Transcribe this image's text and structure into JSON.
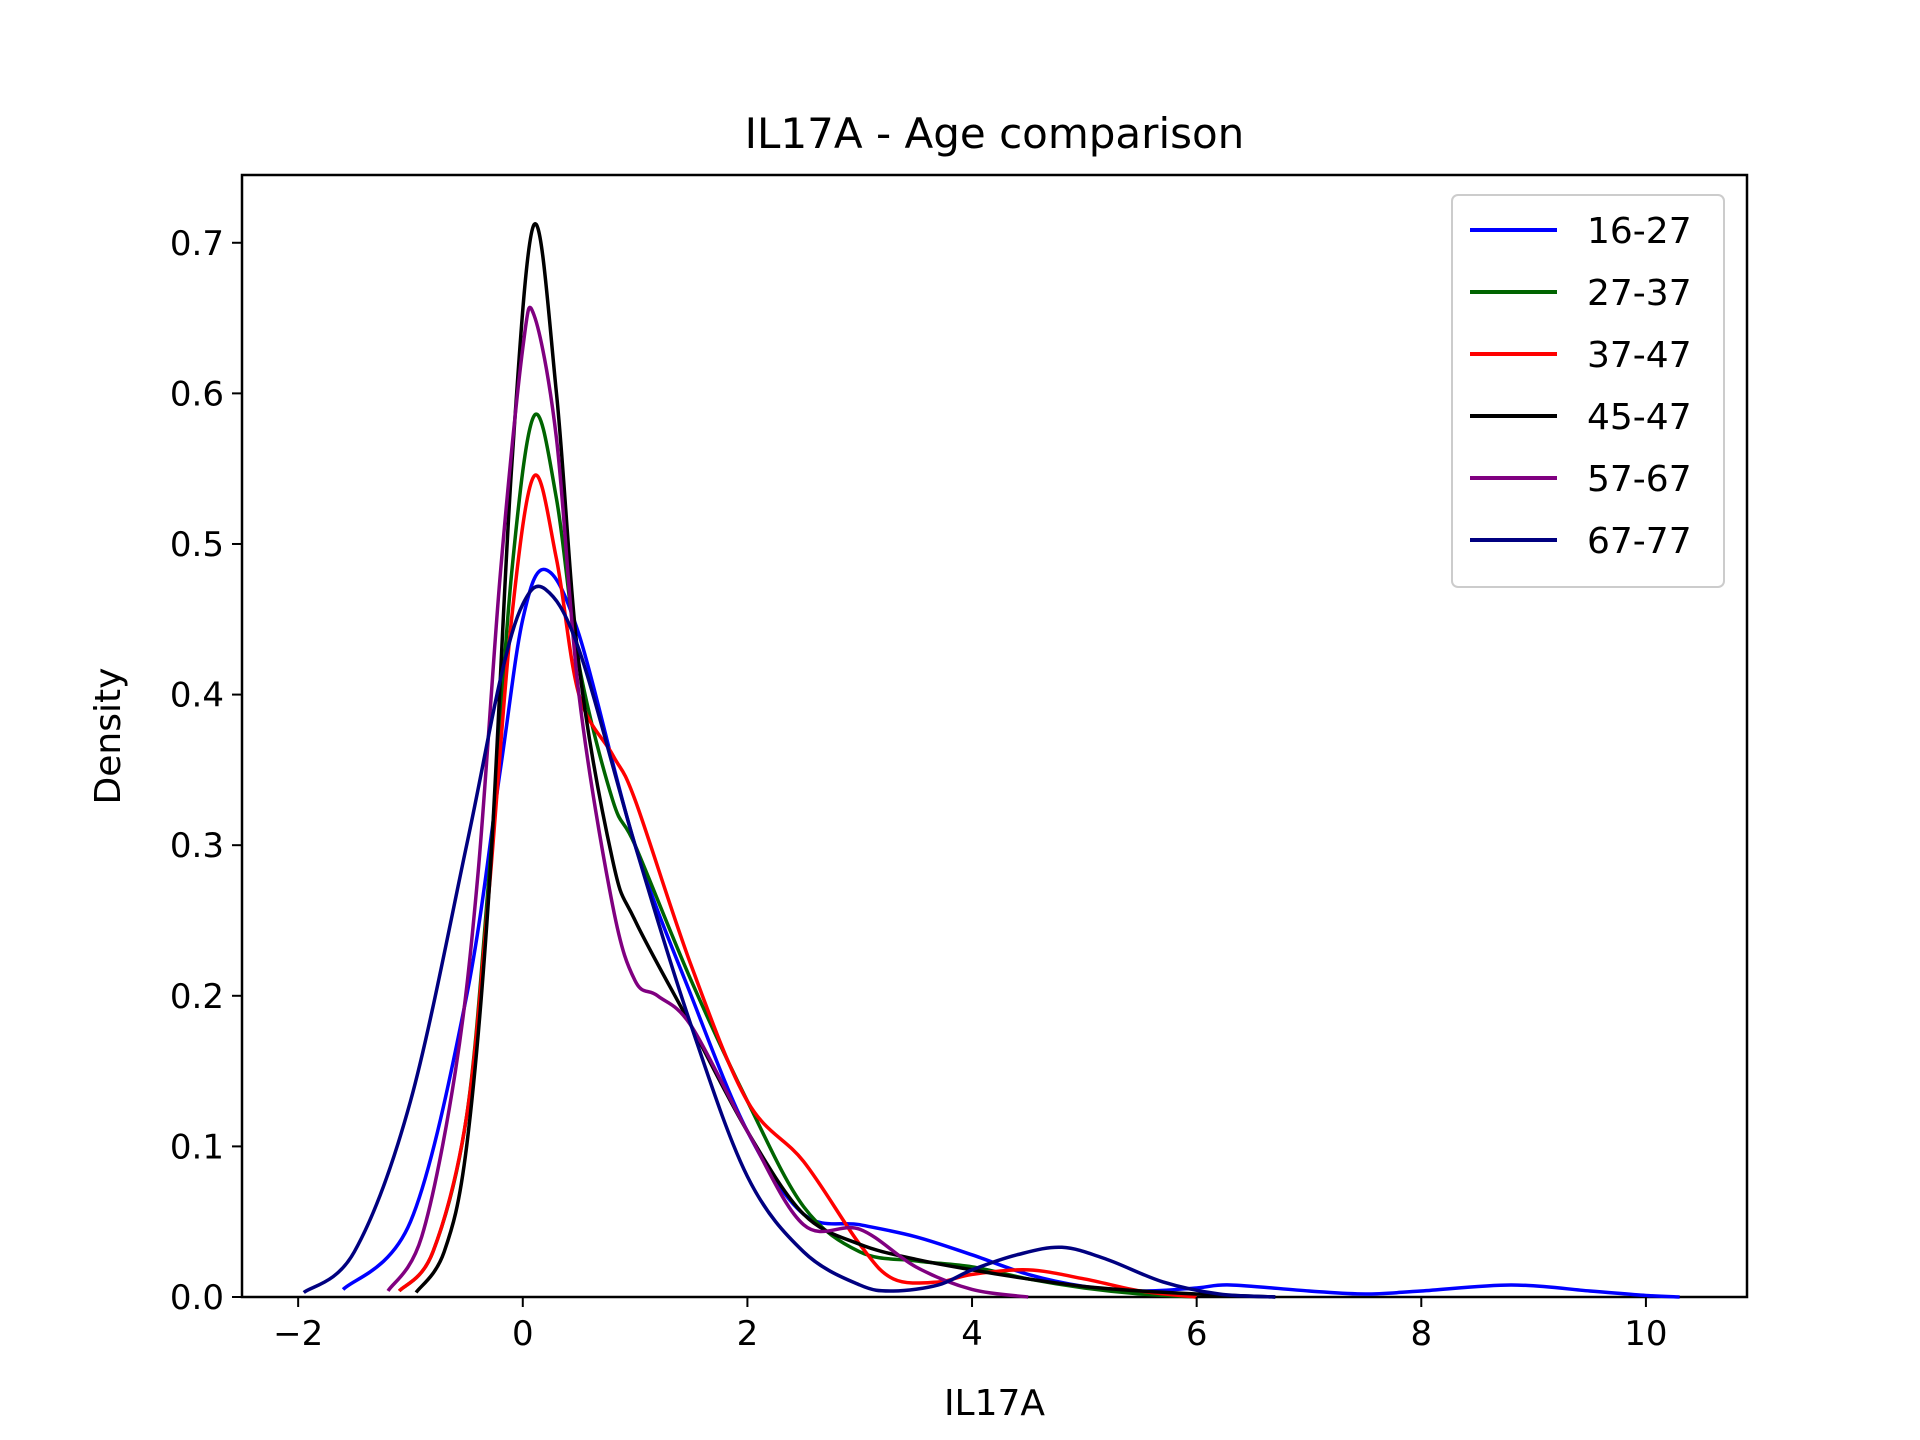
{
  "chart_data": {
    "type": "line",
    "title": "IL17A - Age comparison",
    "xlabel": "IL17A",
    "ylabel": "Density",
    "xlim": [
      -2.5,
      10.9
    ],
    "ylim": [
      0,
      0.745
    ],
    "xticks": [
      -2,
      0,
      2,
      4,
      6,
      8,
      10
    ],
    "xtick_labels": [
      "−2",
      "0",
      "2",
      "4",
      "6",
      "8",
      "10"
    ],
    "yticks": [
      0.0,
      0.1,
      0.2,
      0.3,
      0.4,
      0.5,
      0.6,
      0.7
    ],
    "ytick_labels": [
      "0.0",
      "0.1",
      "0.2",
      "0.3",
      "0.4",
      "0.5",
      "0.6",
      "0.7"
    ],
    "grid": false,
    "legend_position": "top-right",
    "series": [
      {
        "name": "16-27",
        "color": "#0000ff",
        "x": [
          -1.6,
          -1.0,
          -0.5,
          -0.2,
          0.0,
          0.2,
          0.5,
          1.0,
          1.5,
          2.0,
          2.5,
          3.0,
          3.5,
          4.0,
          4.5,
          5.0,
          5.5,
          6.0,
          6.3,
          7.0,
          7.5,
          8.0,
          8.8,
          9.5,
          10.0,
          10.3
        ],
        "y": [
          0.005,
          0.05,
          0.2,
          0.35,
          0.45,
          0.483,
          0.44,
          0.3,
          0.2,
          0.11,
          0.055,
          0.048,
          0.04,
          0.028,
          0.015,
          0.007,
          0.004,
          0.006,
          0.008,
          0.004,
          0.002,
          0.004,
          0.008,
          0.004,
          0.001,
          0.0
        ]
      },
      {
        "name": "27-37",
        "color": "#006400",
        "x": [
          -1.1,
          -0.8,
          -0.5,
          -0.3,
          -0.1,
          0.1,
          0.3,
          0.5,
          0.8,
          1.0,
          1.5,
          2.0,
          2.5,
          3.0,
          3.5,
          4.0,
          4.5,
          5.0,
          5.5,
          6.0
        ],
        "y": [
          0.004,
          0.03,
          0.12,
          0.28,
          0.48,
          0.585,
          0.53,
          0.42,
          0.33,
          0.3,
          0.21,
          0.13,
          0.06,
          0.03,
          0.024,
          0.02,
          0.012,
          0.006,
          0.002,
          0.0
        ]
      },
      {
        "name": "37-47",
        "color": "#ff0000",
        "x": [
          -1.1,
          -0.8,
          -0.5,
          -0.3,
          -0.1,
          0.1,
          0.3,
          0.5,
          0.8,
          1.0,
          1.5,
          2.0,
          2.5,
          3.0,
          3.3,
          3.7,
          4.0,
          4.5,
          5.0,
          5.5,
          6.0
        ],
        "y": [
          0.004,
          0.03,
          0.12,
          0.27,
          0.45,
          0.545,
          0.49,
          0.4,
          0.36,
          0.33,
          0.22,
          0.13,
          0.09,
          0.035,
          0.012,
          0.01,
          0.015,
          0.018,
          0.012,
          0.004,
          0.0
        ]
      },
      {
        "name": "45-47",
        "color": "#000000",
        "x": [
          -0.95,
          -0.7,
          -0.5,
          -0.3,
          -0.1,
          0.1,
          0.3,
          0.5,
          0.8,
          1.0,
          1.5,
          2.0,
          2.5,
          3.0,
          3.5,
          4.0,
          4.5,
          5.0,
          5.5,
          6.0,
          6.7
        ],
        "y": [
          0.003,
          0.03,
          0.1,
          0.27,
          0.55,
          0.712,
          0.6,
          0.42,
          0.29,
          0.25,
          0.18,
          0.11,
          0.055,
          0.035,
          0.025,
          0.018,
          0.012,
          0.007,
          0.004,
          0.002,
          0.0
        ]
      },
      {
        "name": "57-67",
        "color": "#800080",
        "x": [
          -1.2,
          -0.9,
          -0.6,
          -0.4,
          -0.2,
          0.0,
          0.1,
          0.3,
          0.5,
          0.8,
          1.0,
          1.2,
          1.5,
          2.0,
          2.5,
          3.0,
          3.5,
          4.0,
          4.5
        ],
        "y": [
          0.004,
          0.04,
          0.15,
          0.28,
          0.48,
          0.63,
          0.652,
          0.57,
          0.4,
          0.26,
          0.21,
          0.2,
          0.18,
          0.11,
          0.048,
          0.045,
          0.02,
          0.005,
          0.0
        ]
      },
      {
        "name": "67-77",
        "color": "#000080",
        "x": [
          -1.95,
          -1.5,
          -1.0,
          -0.5,
          -0.2,
          0.0,
          0.2,
          0.5,
          1.0,
          1.5,
          2.0,
          2.5,
          3.0,
          3.3,
          3.7,
          4.0,
          4.4,
          4.8,
          5.2,
          5.7,
          6.2,
          6.7
        ],
        "y": [
          0.003,
          0.03,
          0.13,
          0.3,
          0.41,
          0.46,
          0.47,
          0.43,
          0.3,
          0.18,
          0.08,
          0.03,
          0.008,
          0.004,
          0.008,
          0.018,
          0.028,
          0.033,
          0.025,
          0.01,
          0.002,
          0.0
        ]
      }
    ]
  }
}
